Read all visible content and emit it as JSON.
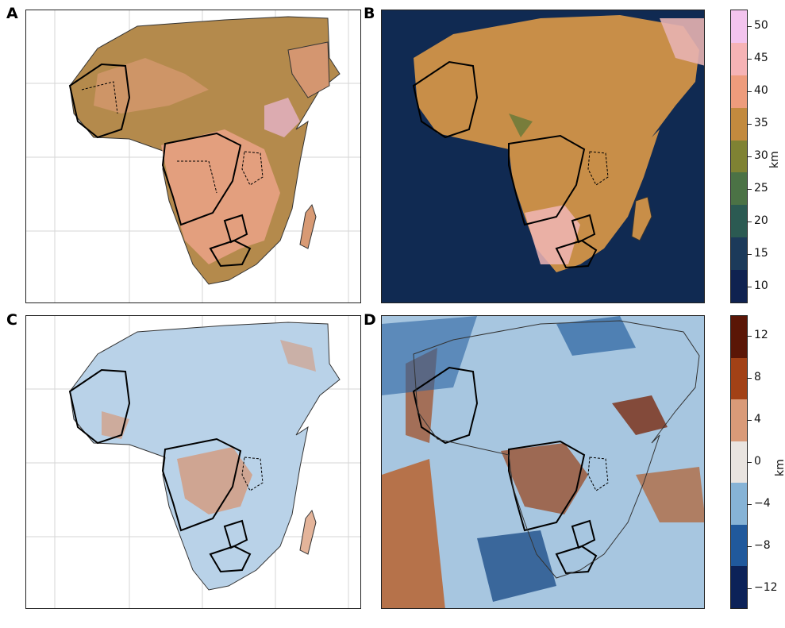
{
  "panels": [
    {
      "label": "A"
    },
    {
      "label": "B"
    },
    {
      "label": "C"
    },
    {
      "label": "D"
    }
  ],
  "colorbar_top": {
    "unit": "km",
    "ticks": [
      "50",
      "45",
      "40",
      "35",
      "30",
      "25",
      "20",
      "15",
      "10"
    ],
    "colors": [
      "#f3c4ee",
      "#f6b3b5",
      "#ee9c7c",
      "#c28a3e",
      "#7f8233",
      "#4b7245",
      "#2b5a52",
      "#1c3a5a",
      "#0f2250"
    ]
  },
  "colorbar_bottom": {
    "unit": "km",
    "ticks": [
      "12",
      "8",
      "4",
      "0",
      "−4",
      "−8",
      "−12"
    ],
    "colors": [
      "#5a1606",
      "#a24116",
      "#d99a78",
      "#e9e4e0",
      "#86b3d6",
      "#20599c",
      "#0c2258"
    ]
  }
}
